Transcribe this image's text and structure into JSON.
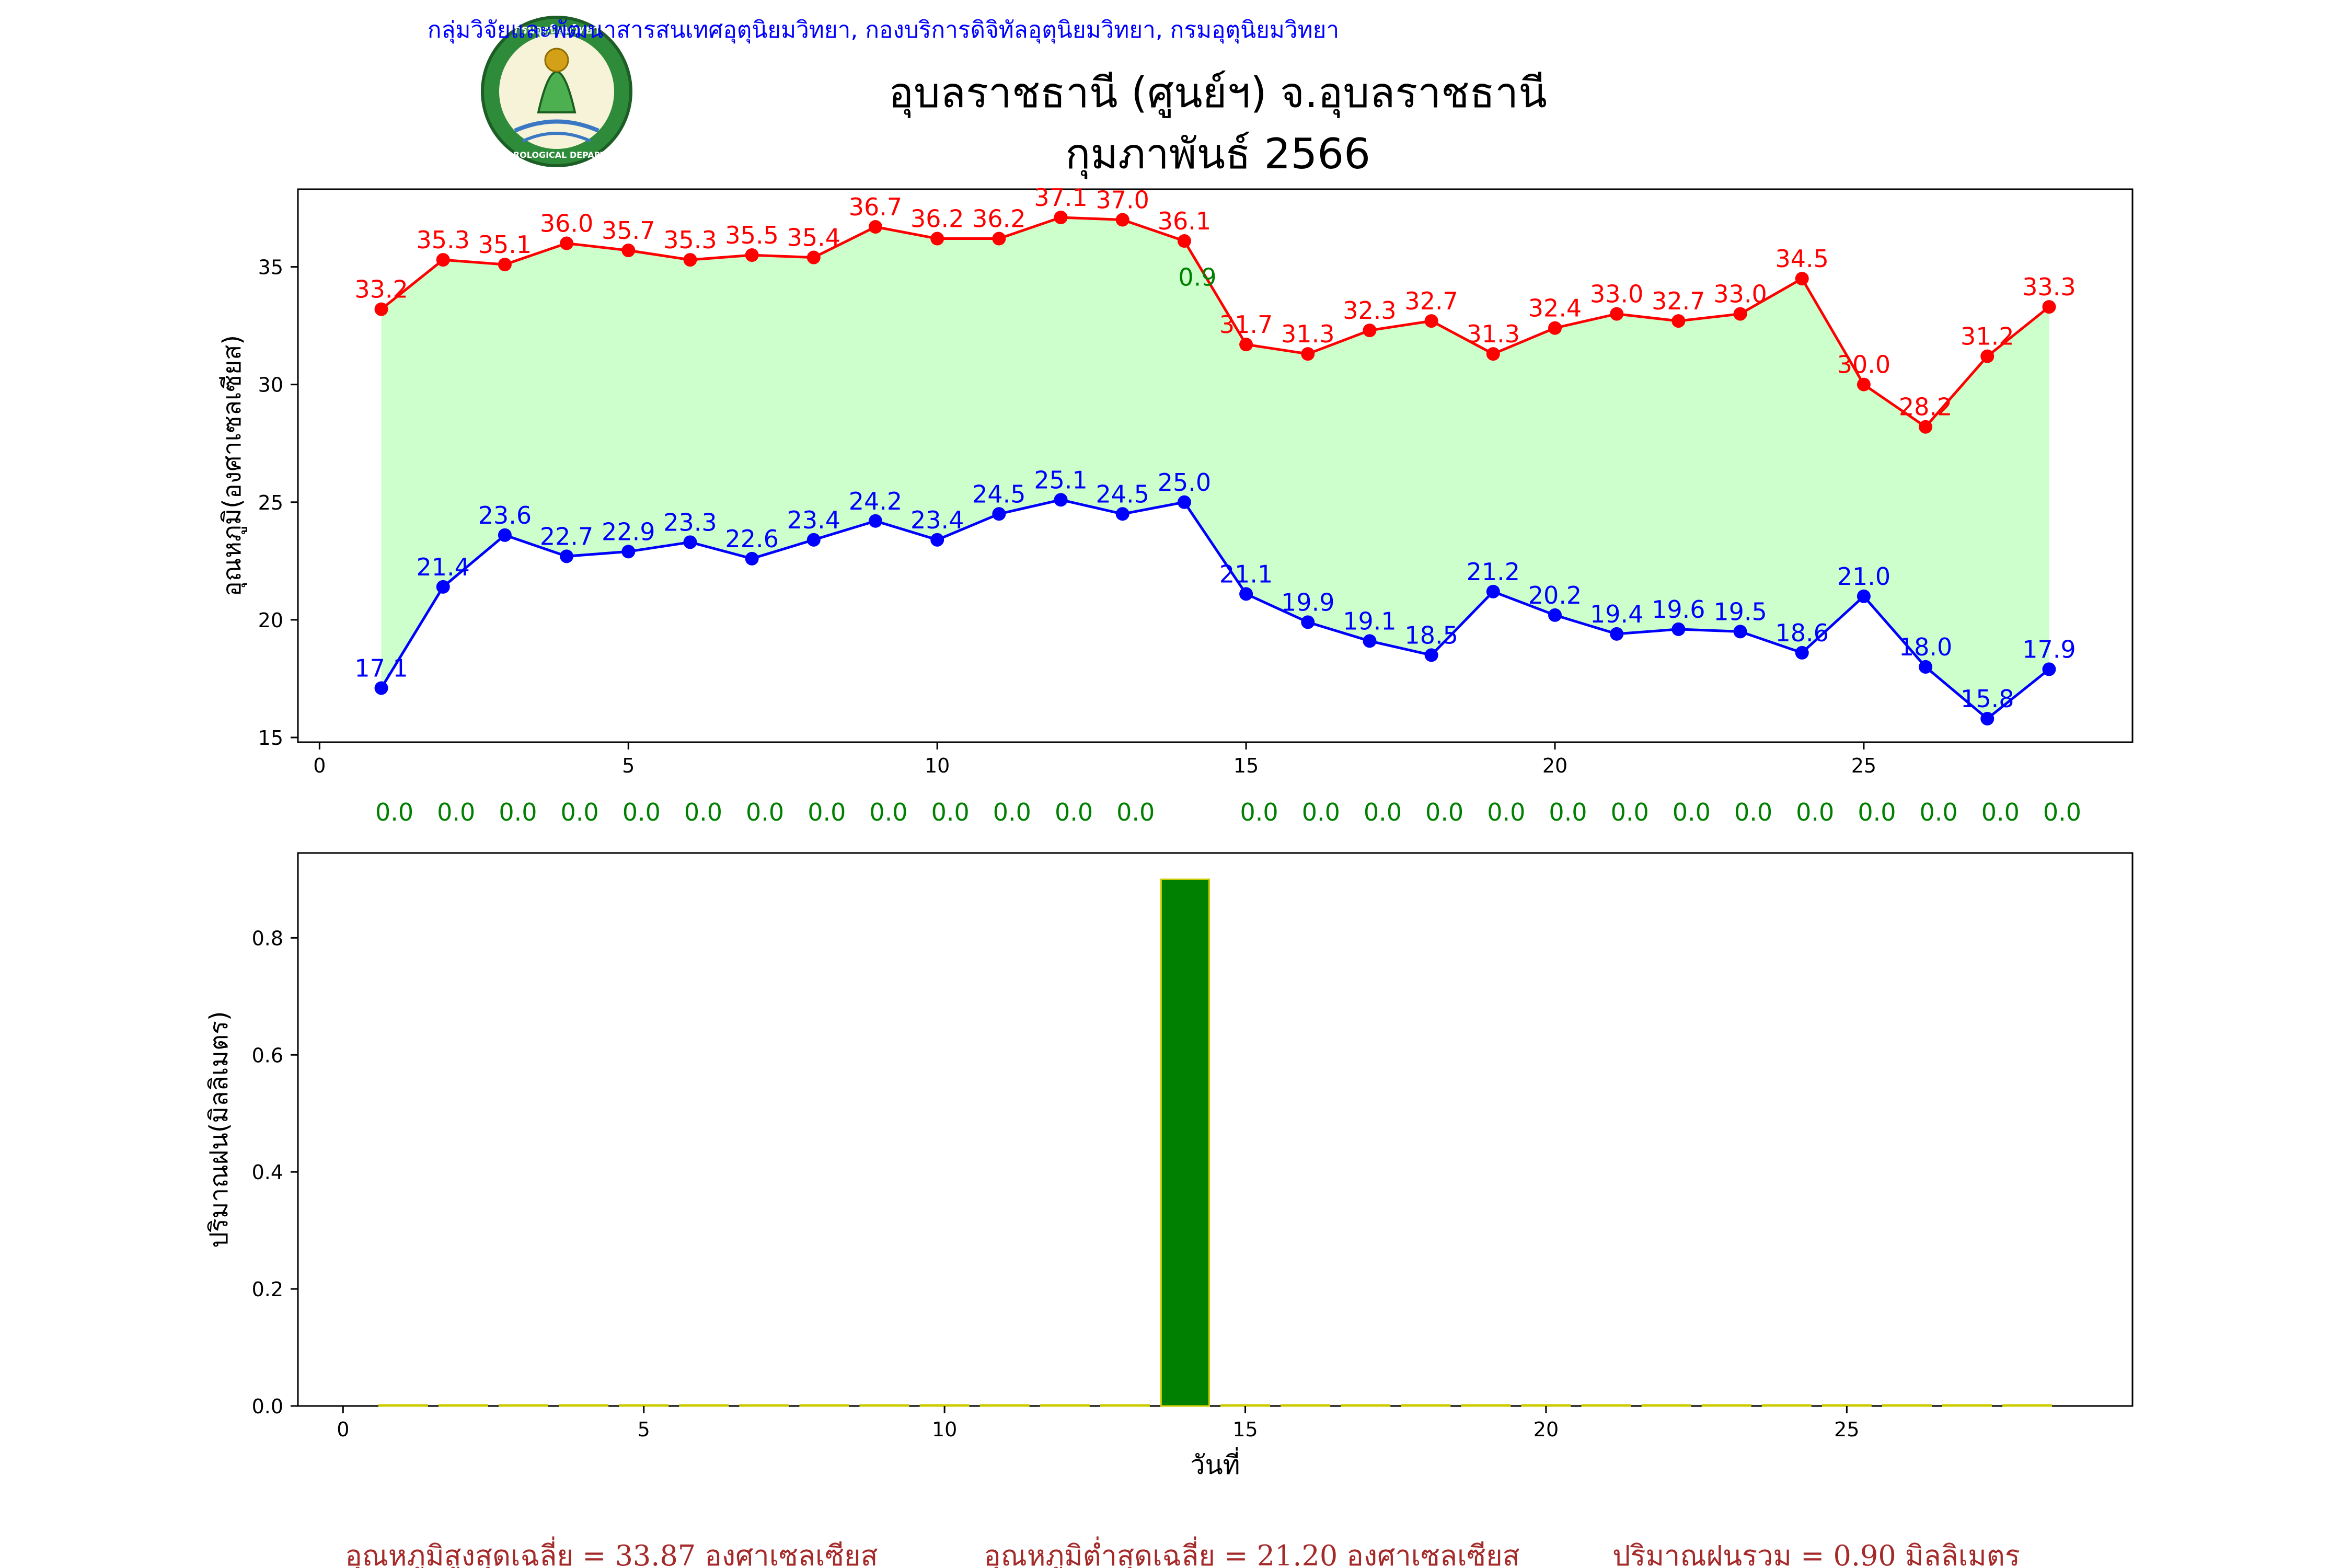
{
  "header": {
    "agency_line": "กลุ่มวิจัยและพัฒนาสารสนเทศอุตุนิยมวิทยา, กองบริการดิจิทัลอุตุนิยมวิทยา, กรมอุตุนิยมวิทยา",
    "title": "อุบลราชธานี (ศูนย์ฯ) จ.อุบลราชธานี",
    "subtitle": "กุมภาพันธ์ 2566",
    "logo_text": "กรมอุตุนิยมวิทยา",
    "logo_subtext": "METEOROLOGICAL DEPARTMENT"
  },
  "colors": {
    "max_line": "#ff0000",
    "min_line": "#0000ff",
    "fill": "#ccffcc",
    "rain_label": "#008000",
    "bar_fill": "#008000",
    "bar_edge": "#cccc00",
    "agency_text": "#0000ff",
    "summary_text": "#a52a2a"
  },
  "chart_data": [
    {
      "type": "line",
      "ylabel": "อุณหภูมิ(องศาเซลเซียส)",
      "xlim": [
        -0.35,
        29.35
      ],
      "ylim": [
        14.8,
        38.3
      ],
      "xticks": [
        0,
        5,
        10,
        15,
        20,
        25
      ],
      "yticks": [
        15,
        20,
        25,
        30,
        35
      ],
      "grid": false,
      "x": [
        1,
        2,
        3,
        4,
        5,
        6,
        7,
        8,
        9,
        10,
        11,
        12,
        13,
        14,
        15,
        16,
        17,
        18,
        19,
        20,
        21,
        22,
        23,
        24,
        25,
        26,
        27,
        28
      ],
      "series": [
        {
          "values": [
            33.2,
            35.3,
            35.1,
            36.0,
            35.7,
            35.3,
            35.5,
            35.4,
            36.7,
            36.2,
            36.2,
            37.1,
            37.0,
            36.1,
            31.7,
            31.3,
            32.3,
            32.7,
            31.3,
            32.4,
            33.0,
            32.7,
            33.0,
            34.5,
            30.0,
            28.2,
            31.2,
            33.3
          ]
        },
        {
          "values": [
            17.1,
            21.4,
            23.6,
            22.7,
            22.9,
            23.3,
            22.6,
            23.4,
            24.2,
            23.4,
            24.5,
            25.1,
            24.5,
            25.0,
            21.1,
            19.9,
            19.1,
            18.5,
            21.2,
            20.2,
            19.4,
            19.6,
            19.5,
            18.6,
            21.0,
            18.0,
            15.8,
            17.9
          ]
        }
      ],
      "rain_labels": [
        "0.0",
        "0.0",
        "0.0",
        "0.0",
        "0.0",
        "0.0",
        "0.0",
        "0.0",
        "0.0",
        "0.0",
        "0.0",
        "0.0",
        "0.0",
        "0.9",
        "0.0",
        "0.0",
        "0.0",
        "0.0",
        "0.0",
        "0.0",
        "0.0",
        "0.0",
        "0.0",
        "0.0",
        "0.0",
        "0.0",
        "0.0",
        "0.0"
      ]
    },
    {
      "type": "bar",
      "ylabel": "ปริมาณฝน(มิลลิเมตร)",
      "xlabel": "วันที่",
      "xlim": [
        -0.75,
        29.75
      ],
      "ylim": [
        0,
        0.945
      ],
      "xticks": [
        0,
        5,
        10,
        15,
        20,
        25
      ],
      "yticks": [
        0.0,
        0.2,
        0.4,
        0.6,
        0.8
      ],
      "grid": false,
      "x": [
        1,
        2,
        3,
        4,
        5,
        6,
        7,
        8,
        9,
        10,
        11,
        12,
        13,
        14,
        15,
        16,
        17,
        18,
        19,
        20,
        21,
        22,
        23,
        24,
        25,
        26,
        27,
        28
      ],
      "values": [
        0,
        0,
        0,
        0,
        0,
        0,
        0,
        0,
        0,
        0,
        0,
        0,
        0,
        0.9,
        0,
        0,
        0,
        0,
        0,
        0,
        0,
        0,
        0,
        0,
        0,
        0,
        0,
        0
      ]
    }
  ],
  "summary": {
    "avg_max": "อุณหภูมิสูงสุดเฉลี่ย = 33.87 องศาเซลเซียส",
    "avg_min": "อุณหภูมิต่ำสุดเฉลี่ย = 21.20 องศาเซลเซียส",
    "total_rain": "ปริมาณฝนรวม = 0.90 มิลลิเมตร"
  }
}
